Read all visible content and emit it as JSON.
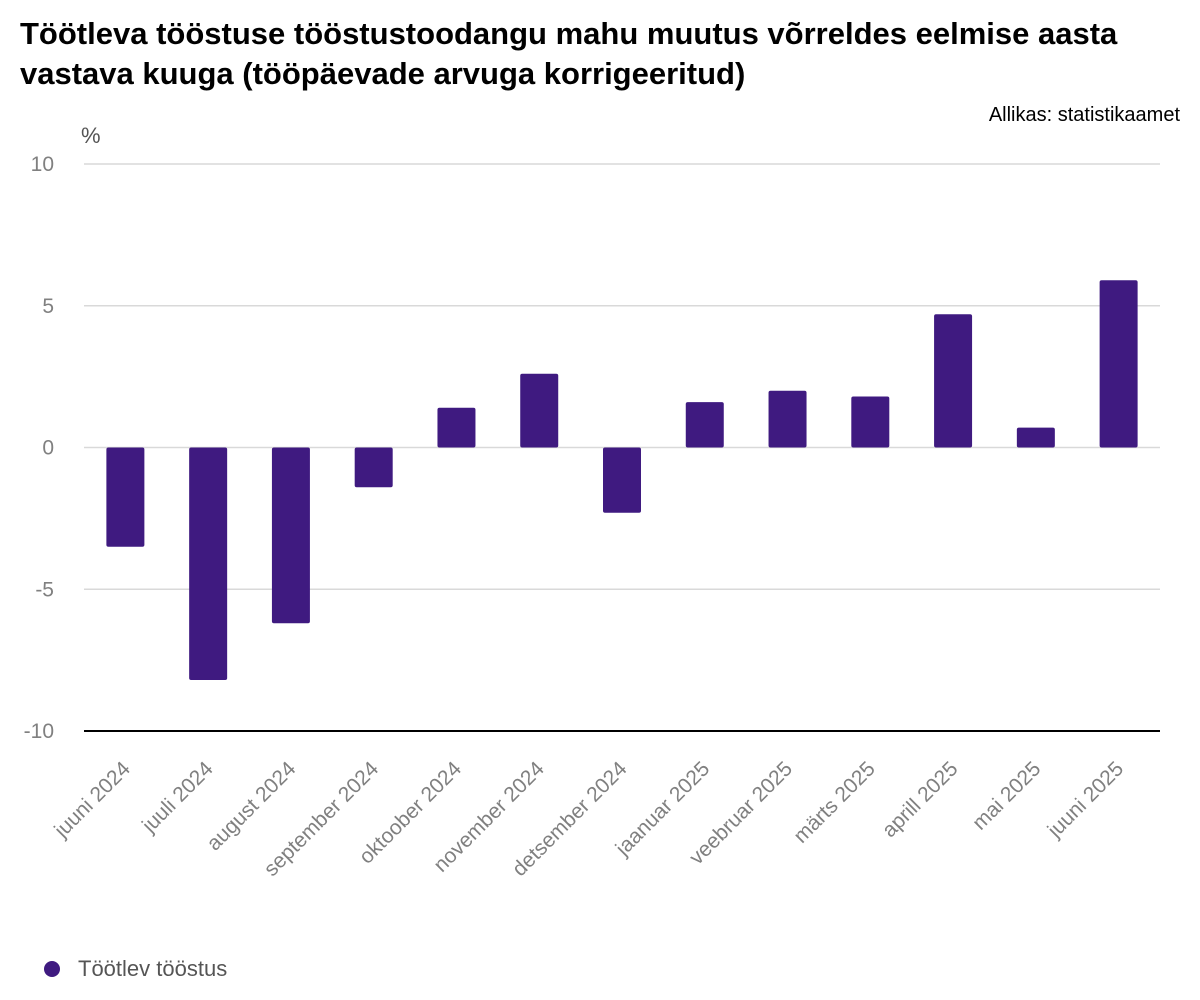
{
  "title": "Töötleva tööstuse tööstustoodangu mahu muutus võrreldes eelmise aasta vastava kuuga (tööpäevade arvuga korrigeeritud)",
  "source": "Allikas: statistikaamet",
  "unit": "%",
  "colors": {
    "bar": "#3f1a80",
    "grid": "#d9d9d9",
    "axis": "#000000",
    "tick_text": "#808080"
  },
  "chart_data": {
    "type": "bar",
    "title": "Töötleva tööstuse tööstustoodangu mahu muutus võrreldes eelmise aasta vastava kuuga (tööpäevade arvuga korrigeeritud)",
    "ylabel": "%",
    "xlabel": "",
    "ylim": [
      -10,
      10
    ],
    "yticks": [
      10,
      5,
      0,
      -5,
      -10
    ],
    "ytick_labels": [
      "10",
      "5",
      "0",
      "-5",
      "-10"
    ],
    "grid": true,
    "legend_position": "bottom-left",
    "categories": [
      "juuni 2024",
      "juuli 2024",
      "august 2024",
      "september 2024",
      "oktoober 2024",
      "november 2024",
      "detsember 2024",
      "jaanuar 2025",
      "veebruar 2025",
      "märts 2025",
      "aprill 2025",
      "mai 2025",
      "juuni 2025"
    ],
    "series": [
      {
        "name": "Töötlev tööstus",
        "color": "#3f1a80",
        "values": [
          -3.5,
          -8.2,
          -6.2,
          -1.4,
          1.4,
          2.6,
          -2.3,
          1.6,
          2.0,
          1.8,
          4.7,
          0.7,
          5.9
        ]
      }
    ]
  }
}
